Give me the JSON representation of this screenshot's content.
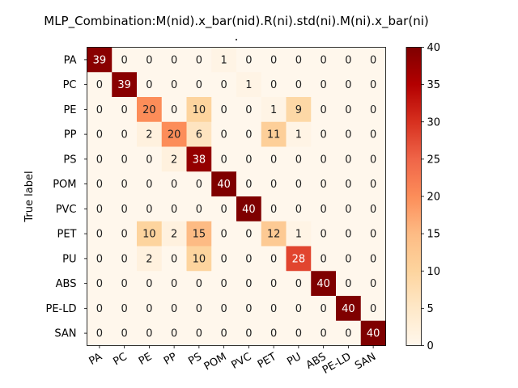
{
  "chart_data": {
    "type": "heatmap",
    "title_line1": "MLP_Combination:M(nid).x_bar(nid).R(ni).std(ni).M(ni).x_bar(ni)",
    "title_line2": ".",
    "ylabel": "True label",
    "xlabel": "",
    "row_labels": [
      "PA",
      "PC",
      "PE",
      "PP",
      "PS",
      "POM",
      "PVC",
      "PET",
      "PU",
      "ABS",
      "PE-LD",
      "SAN"
    ],
    "col_labels": [
      "PA",
      "PC",
      "PE",
      "PP",
      "PS",
      "POM",
      "PVC",
      "PET",
      "PU",
      "ABS",
      "PE-LD",
      "SAN"
    ],
    "matrix": [
      [
        39,
        0,
        0,
        0,
        0,
        1,
        0,
        0,
        0,
        0,
        0,
        0
      ],
      [
        0,
        39,
        0,
        0,
        0,
        0,
        1,
        0,
        0,
        0,
        0,
        0
      ],
      [
        0,
        0,
        20,
        0,
        10,
        0,
        0,
        1,
        9,
        0,
        0,
        0
      ],
      [
        0,
        0,
        2,
        20,
        6,
        0,
        0,
        11,
        1,
        0,
        0,
        0
      ],
      [
        0,
        0,
        0,
        2,
        38,
        0,
        0,
        0,
        0,
        0,
        0,
        0
      ],
      [
        0,
        0,
        0,
        0,
        0,
        40,
        0,
        0,
        0,
        0,
        0,
        0
      ],
      [
        0,
        0,
        0,
        0,
        0,
        0,
        40,
        0,
        0,
        0,
        0,
        0
      ],
      [
        0,
        0,
        10,
        2,
        15,
        0,
        0,
        12,
        1,
        0,
        0,
        0
      ],
      [
        0,
        0,
        2,
        0,
        10,
        0,
        0,
        0,
        28,
        0,
        0,
        0
      ],
      [
        0,
        0,
        0,
        0,
        0,
        0,
        0,
        0,
        0,
        40,
        0,
        0
      ],
      [
        0,
        0,
        0,
        0,
        0,
        0,
        0,
        0,
        0,
        0,
        40,
        0
      ],
      [
        0,
        0,
        0,
        0,
        0,
        0,
        0,
        0,
        0,
        0,
        0,
        40
      ]
    ],
    "vmin": 0,
    "vmax": 40,
    "colormap": "OrRd",
    "colorbar_ticks": [
      0,
      5,
      10,
      15,
      20,
      25,
      30,
      35,
      40
    ],
    "grid": false
  }
}
